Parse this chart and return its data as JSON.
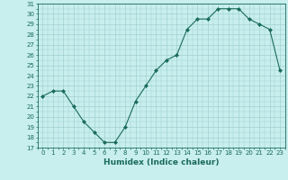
{
  "x_data": [
    0,
    1,
    2,
    3,
    4,
    5,
    6,
    7,
    8,
    9,
    10,
    11,
    12,
    13,
    14,
    15,
    16,
    17,
    18,
    19,
    20,
    21,
    22,
    23
  ],
  "y_data": [
    22,
    22.5,
    22.5,
    21,
    19.5,
    18.5,
    17.5,
    17.5,
    19,
    21.5,
    23,
    24.5,
    25.5,
    26,
    28.5,
    29.5,
    29.5,
    30.5,
    30.5,
    30.5,
    29.5,
    29,
    28.5,
    24.5
  ],
  "ylim": [
    17,
    31
  ],
  "xlim": [
    -0.5,
    23.5
  ],
  "yticks": [
    17,
    18,
    19,
    20,
    21,
    22,
    23,
    24,
    25,
    26,
    27,
    28,
    29,
    30,
    31
  ],
  "xticks": [
    0,
    1,
    2,
    3,
    4,
    5,
    6,
    7,
    8,
    9,
    10,
    11,
    12,
    13,
    14,
    15,
    16,
    17,
    18,
    19,
    20,
    21,
    22,
    23
  ],
  "xlabel": "Humidex (Indice chaleur)",
  "line_color": "#1a6b5a",
  "marker": "D",
  "marker_size": 2.0,
  "linewidth": 0.8,
  "bg_color": "#c8eeee",
  "grid_color": "#a0d0d0",
  "tick_fontsize": 5.0,
  "xlabel_fontsize": 6.5
}
